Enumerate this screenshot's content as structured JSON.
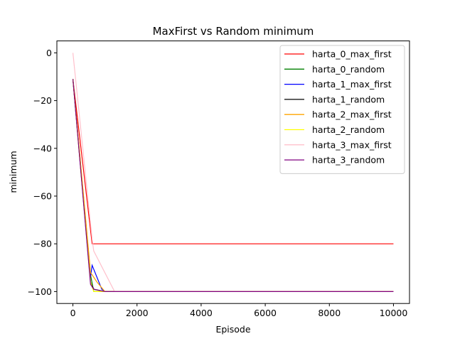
{
  "chart_data": {
    "type": "line",
    "title": "MaxFirst vs Random minimum",
    "xlabel": "Episode",
    "ylabel": "minimum",
    "xlim": [
      -500,
      10500
    ],
    "ylim": [
      -105,
      5
    ],
    "xticks": [
      0,
      2000,
      4000,
      6000,
      8000,
      10000
    ],
    "yticks": [
      0,
      -20,
      -40,
      -60,
      -80,
      -100
    ],
    "xtick_labels": [
      "0",
      "2000",
      "4000",
      "6000",
      "8000",
      "10000"
    ],
    "ytick_labels": [
      "0",
      "−20",
      "−40",
      "−60",
      "−80",
      "−100"
    ],
    "grid": false,
    "legend_position": "top-right",
    "series": [
      {
        "name": "harta_0_max_first",
        "color": "#ff0000",
        "x": [
          0,
          600,
          700,
          10000
        ],
        "y": [
          -11,
          -80,
          -80,
          -80
        ]
      },
      {
        "name": "harta_0_random",
        "color": "#008000",
        "x": [
          0,
          550,
          650,
          900,
          10000
        ],
        "y": [
          -11,
          -93,
          -100,
          -100,
          -100
        ]
      },
      {
        "name": "harta_1_max_first",
        "color": "#0000ff",
        "x": [
          0,
          550,
          600,
          900,
          1000,
          10000
        ],
        "y": [
          -11,
          -94,
          -89,
          -99,
          -100,
          -100
        ]
      },
      {
        "name": "harta_1_random",
        "color": "#000000",
        "x": [
          0,
          550,
          650,
          1000,
          10000
        ],
        "y": [
          -11,
          -96,
          -99,
          -100,
          -100
        ]
      },
      {
        "name": "harta_2_max_first",
        "color": "#ffa500",
        "x": [
          0,
          550,
          750,
          1000,
          10000
        ],
        "y": [
          -11,
          -92,
          -96,
          -100,
          -100
        ]
      },
      {
        "name": "harta_2_random",
        "color": "#ffff00",
        "x": [
          0,
          550,
          650,
          10000
        ],
        "y": [
          -11,
          -96,
          -100,
          -100
        ]
      },
      {
        "name": "harta_3_max_first",
        "color": "#ffc0cb",
        "x": [
          0,
          600,
          650,
          1300,
          10000
        ],
        "y": [
          0,
          -78,
          -83,
          -100,
          -100
        ]
      },
      {
        "name": "harta_3_random",
        "color": "#800080",
        "x": [
          0,
          550,
          650,
          1000,
          10000
        ],
        "y": [
          -11,
          -97,
          -99,
          -100,
          -100
        ]
      }
    ]
  }
}
